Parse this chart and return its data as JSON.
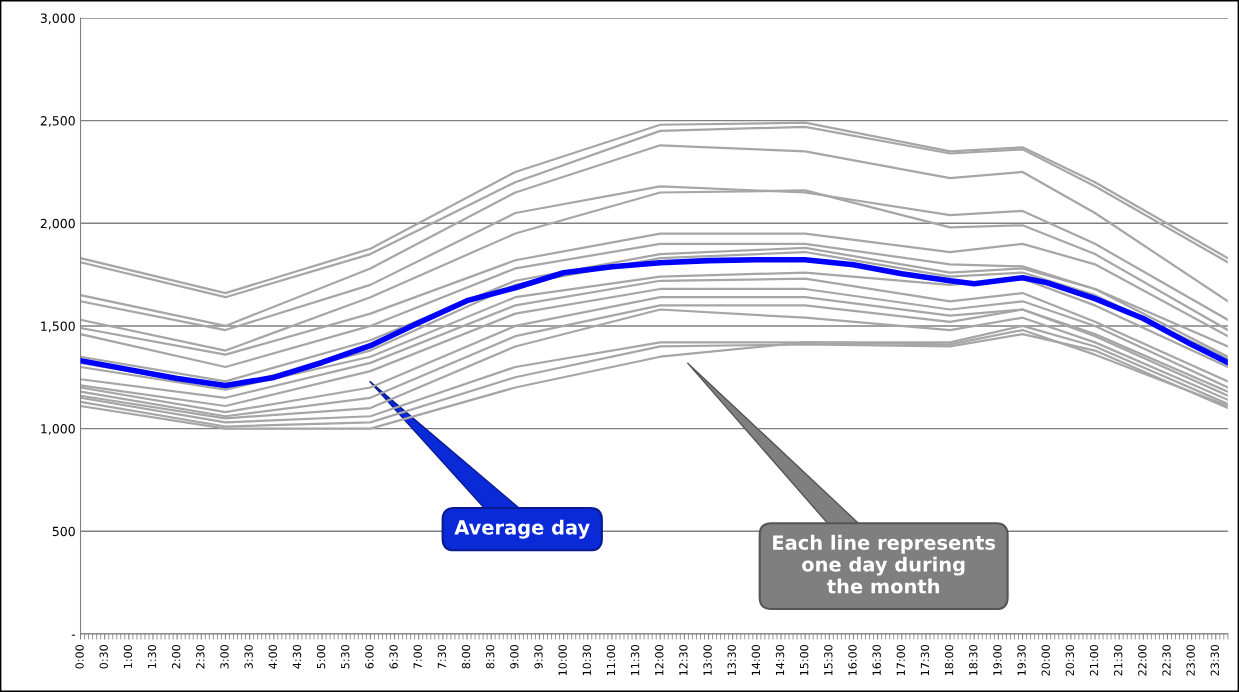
{
  "chart_data": {
    "type": "line",
    "x": [
      0,
      3,
      6,
      9,
      12,
      15,
      18,
      19.5,
      21,
      23.75
    ],
    "series": [
      {
        "color": "#a6a6a6",
        "values": [
          1830,
          1660,
          1876,
          2250,
          2480,
          2490,
          2350,
          2370,
          2200,
          1830
        ]
      },
      {
        "color": "#a6a6a6",
        "values": [
          1810,
          1640,
          1850,
          2200,
          2450,
          2470,
          2340,
          2360,
          2180,
          1810
        ]
      },
      {
        "color": "#a6a6a6",
        "values": [
          1650,
          1500,
          1780,
          2150,
          2380,
          2350,
          2220,
          2250,
          2050,
          1620
        ]
      },
      {
        "color": "#a6a6a6",
        "values": [
          1620,
          1480,
          1700,
          2050,
          2180,
          2150,
          2040,
          2060,
          1900,
          1530
        ]
      },
      {
        "color": "#a6a6a6",
        "values": [
          1530,
          1380,
          1640,
          1950,
          2150,
          2160,
          1980,
          1990,
          1850,
          1480
        ]
      },
      {
        "color": "#a6a6a6",
        "values": [
          1490,
          1360,
          1560,
          1820,
          1950,
          1950,
          1860,
          1900,
          1800,
          1450
        ]
      },
      {
        "color": "#a6a6a6",
        "values": [
          1460,
          1300,
          1500,
          1780,
          1900,
          1900,
          1800,
          1790,
          1680,
          1400
        ]
      },
      {
        "color": "#a6a6a6",
        "values": [
          1350,
          1230,
          1430,
          1720,
          1850,
          1880,
          1760,
          1780,
          1680,
          1350
        ]
      },
      {
        "color": "#a6a6a6",
        "values": [
          1320,
          1200,
          1380,
          1700,
          1830,
          1860,
          1740,
          1760,
          1650,
          1340
        ]
      },
      {
        "color": "#a6a6a6",
        "values": [
          1300,
          1190,
          1350,
          1640,
          1740,
          1760,
          1700,
          1730,
          1600,
          1300
        ]
      },
      {
        "color": "#a6a6a6",
        "values": [
          1240,
          1150,
          1320,
          1600,
          1720,
          1730,
          1620,
          1660,
          1520,
          1230
        ]
      },
      {
        "color": "#a6a6a6",
        "values": [
          1210,
          1110,
          1280,
          1560,
          1680,
          1680,
          1580,
          1620,
          1500,
          1200
        ]
      },
      {
        "color": "#a6a6a6",
        "values": [
          1200,
          1080,
          1200,
          1500,
          1640,
          1640,
          1550,
          1580,
          1460,
          1180
        ]
      },
      {
        "color": "#a6a6a6",
        "values": [
          1180,
          1060,
          1150,
          1450,
          1600,
          1600,
          1520,
          1580,
          1450,
          1160
        ]
      },
      {
        "color": "#a6a6a6",
        "values": [
          1160,
          1050,
          1100,
          1400,
          1580,
          1540,
          1480,
          1540,
          1420,
          1140
        ]
      },
      {
        "color": "#a6a6a6",
        "values": [
          1150,
          1030,
          1060,
          1300,
          1420,
          1420,
          1420,
          1500,
          1400,
          1120
        ]
      },
      {
        "color": "#a6a6a6",
        "values": [
          1130,
          1010,
          1030,
          1250,
          1400,
          1410,
          1400,
          1460,
          1380,
          1100
        ]
      },
      {
        "color": "#a6a6a6",
        "values": [
          1110,
          1000,
          1000,
          1200,
          1350,
          1420,
          1410,
          1480,
          1360,
          1110
        ]
      },
      {
        "color": "#0000ff",
        "x": [
          0,
          2,
          3,
          4,
          5,
          6,
          7,
          8,
          9,
          10,
          11,
          12,
          13,
          14,
          15,
          16,
          17,
          18,
          18.5,
          19.5,
          20,
          21,
          22,
          23,
          23.75
        ],
        "values": [
          1331,
          1244,
          1210,
          1249,
          1322,
          1404,
          1516,
          1623,
          1686,
          1759,
          1788,
          1808,
          1818,
          1822,
          1822,
          1798,
          1754,
          1720,
          1706,
          1735,
          1711,
          1633,
          1536,
          1409,
          1322
        ]
      }
    ],
    "xlim": [
      0,
      23.75
    ],
    "xticks": [
      {
        "value": 0,
        "label": "0:00"
      },
      {
        "value": 0.5,
        "label": "0:30"
      },
      {
        "value": 1,
        "label": "1:00"
      },
      {
        "value": 1.5,
        "label": "1:30"
      },
      {
        "value": 2,
        "label": "2:00"
      },
      {
        "value": 2.5,
        "label": "2:30"
      },
      {
        "value": 3,
        "label": "3:00"
      },
      {
        "value": 3.5,
        "label": "3:30"
      },
      {
        "value": 4,
        "label": "4:00"
      },
      {
        "value": 4.5,
        "label": "4:30"
      },
      {
        "value": 5,
        "label": "5:00"
      },
      {
        "value": 5.5,
        "label": "5:30"
      },
      {
        "value": 6,
        "label": "6:00"
      },
      {
        "value": 6.5,
        "label": "6:30"
      },
      {
        "value": 7,
        "label": "7:00"
      },
      {
        "value": 7.5,
        "label": "7:30"
      },
      {
        "value": 8,
        "label": "8:00"
      },
      {
        "value": 8.5,
        "label": "8:30"
      },
      {
        "value": 9,
        "label": "9:00"
      },
      {
        "value": 9.5,
        "label": "9:30"
      },
      {
        "value": 10,
        "label": "10:00"
      },
      {
        "value": 10.5,
        "label": "10:30"
      },
      {
        "value": 11,
        "label": "11:00"
      },
      {
        "value": 11.5,
        "label": "11:30"
      },
      {
        "value": 12,
        "label": "12:00"
      },
      {
        "value": 12.5,
        "label": "12:30"
      },
      {
        "value": 13,
        "label": "13:00"
      },
      {
        "value": 13.5,
        "label": "13:30"
      },
      {
        "value": 14,
        "label": "14:00"
      },
      {
        "value": 14.5,
        "label": "14:30"
      },
      {
        "value": 15,
        "label": "15:00"
      },
      {
        "value": 15.5,
        "label": "15:30"
      },
      {
        "value": 16,
        "label": "16:00"
      },
      {
        "value": 16.5,
        "label": "16:30"
      },
      {
        "value": 17,
        "label": "17:00"
      },
      {
        "value": 17.5,
        "label": "17:30"
      },
      {
        "value": 18,
        "label": "18:00"
      },
      {
        "value": 18.5,
        "label": "18:30"
      },
      {
        "value": 19,
        "label": "19:00"
      },
      {
        "value": 19.5,
        "label": "19:30"
      },
      {
        "value": 20,
        "label": "20:00"
      },
      {
        "value": 20.5,
        "label": "20:30"
      },
      {
        "value": 21,
        "label": "21:00"
      },
      {
        "value": 21.5,
        "label": "21:30"
      },
      {
        "value": 22,
        "label": "22:00"
      },
      {
        "value": 22.5,
        "label": "22:30"
      },
      {
        "value": 23,
        "label": "23:00"
      },
      {
        "value": 23.5,
        "label": "23:30"
      }
    ],
    "ylim": [
      0,
      3000
    ],
    "yticks": [
      {
        "value": 0,
        "label": "-"
      },
      {
        "value": 500,
        "label": "500"
      },
      {
        "value": 1000,
        "label": "1,000"
      },
      {
        "value": 1500,
        "label": "1,500"
      },
      {
        "value": 2000,
        "label": "2,000"
      },
      {
        "value": 2500,
        "label": "2,500"
      },
      {
        "value": 3000,
        "label": "3,000"
      }
    ],
    "grid": "y",
    "annotations": [
      "Average day",
      "Each line represents\none day during\nthe month"
    ]
  }
}
